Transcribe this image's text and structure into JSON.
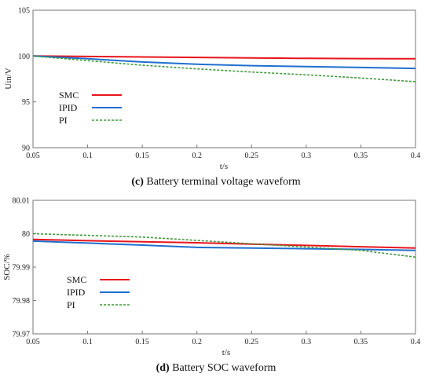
{
  "chart_data": [
    {
      "type": "line",
      "caption_label": "(c)",
      "caption_text": " Battery terminal voltage waveform",
      "xlabel": "t/s",
      "ylabel": "Uin/V",
      "xlim": [
        0.05,
        0.4
      ],
      "ylim": [
        90,
        105
      ],
      "xticks": [
        "0.05",
        "0.1",
        "0.15",
        "0.2",
        "0.25",
        "0.3",
        "0.35",
        "0.4"
      ],
      "yticks": [
        "90",
        "95",
        "100",
        "105"
      ],
      "grid": false,
      "legend_position": "left",
      "series": [
        {
          "name": "SMC",
          "color": "#e8141b",
          "style": "solid",
          "x": [
            0.05,
            0.1,
            0.15,
            0.2,
            0.25,
            0.3,
            0.35,
            0.4
          ],
          "y": [
            100,
            99.95,
            99.9,
            99.85,
            99.8,
            99.75,
            99.72,
            99.7
          ]
        },
        {
          "name": "IPID",
          "color": "#1f6fcf",
          "style": "solid",
          "x": [
            0.05,
            0.1,
            0.15,
            0.2,
            0.25,
            0.3,
            0.35,
            0.4
          ],
          "y": [
            100,
            99.7,
            99.35,
            99.1,
            98.95,
            98.85,
            98.75,
            98.65
          ]
        },
        {
          "name": "PI",
          "color": "#3f9a3a",
          "style": "dashed",
          "x": [
            0.05,
            0.1,
            0.15,
            0.2,
            0.25,
            0.3,
            0.35,
            0.4
          ],
          "y": [
            100,
            99.5,
            99.0,
            98.6,
            98.25,
            97.95,
            97.6,
            97.2
          ]
        }
      ]
    },
    {
      "type": "line",
      "caption_label": "(d)",
      "caption_text": " Battery SOC waveform",
      "xlabel": "t/s",
      "ylabel": "SOC/%",
      "xlim": [
        0.05,
        0.4
      ],
      "ylim": [
        79.97,
        80.01
      ],
      "xticks": [
        "0.05",
        "0.1",
        "0.15",
        "0.2",
        "0.25",
        "0.3",
        "0.35",
        "0.4"
      ],
      "yticks": [
        "79.97",
        "79.98",
        "79.99",
        "80",
        "80.01"
      ],
      "grid": false,
      "legend_position": "left",
      "series": [
        {
          "name": "SMC",
          "color": "#e8141b",
          "style": "solid",
          "x": [
            0.05,
            0.1,
            0.15,
            0.2,
            0.25,
            0.3,
            0.35,
            0.4
          ],
          "y": [
            79.9983,
            79.9979,
            79.9976,
            79.9973,
            79.9969,
            79.9965,
            79.9961,
            79.9957
          ]
        },
        {
          "name": "IPID",
          "color": "#1f6fcf",
          "style": "solid",
          "x": [
            0.05,
            0.1,
            0.15,
            0.2,
            0.25,
            0.3,
            0.35,
            0.4
          ],
          "y": [
            79.9978,
            79.9972,
            79.9966,
            79.9959,
            79.9957,
            79.9955,
            79.9953,
            79.995
          ]
        },
        {
          "name": "PI",
          "color": "#3f9a3a",
          "style": "dashed",
          "x": [
            0.05,
            0.1,
            0.15,
            0.2,
            0.25,
            0.3,
            0.35,
            0.4
          ],
          "y": [
            80.0,
            79.9995,
            79.999,
            79.998,
            79.997,
            79.996,
            79.995,
            79.993
          ]
        }
      ]
    }
  ]
}
